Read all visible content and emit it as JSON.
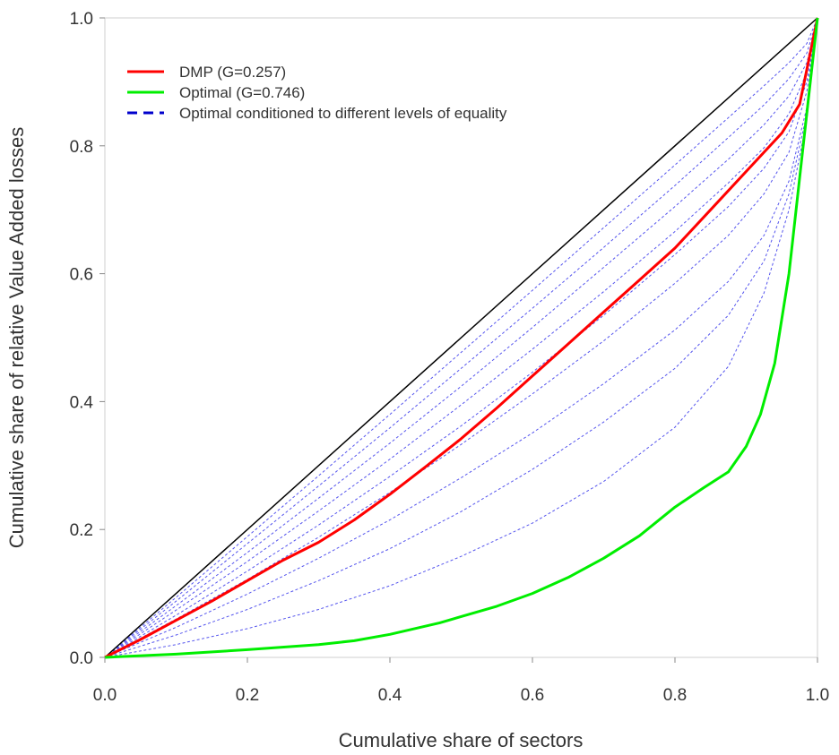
{
  "chart_data": {
    "type": "line",
    "title": "",
    "xlabel": "Cumulative share of sectors",
    "ylabel": "Cumulative share of relative Value Added losses",
    "xlim": [
      0,
      1
    ],
    "ylim": [
      0,
      1
    ],
    "x_ticks": [
      "0.0",
      "0.2",
      "0.4",
      "0.6",
      "0.8",
      "1.0"
    ],
    "y_ticks": [
      "0.0",
      "0.2",
      "0.4",
      "0.6",
      "0.8",
      "1.0"
    ],
    "grid": false,
    "legend_position": "top-left",
    "legend": [
      {
        "label": "DMP (G=0.257)",
        "color": "#ff0000",
        "style": "solid"
      },
      {
        "label": "Optimal (G=0.746)",
        "color": "#00ee00",
        "style": "solid"
      },
      {
        "label": "Optimal conditioned to different levels of equality",
        "color": "#0000cc",
        "style": "dashed"
      }
    ],
    "equality_line": {
      "color": "#000000",
      "x": [
        0,
        1
      ],
      "y": [
        0,
        1
      ]
    },
    "series": [
      {
        "label_ref": 0,
        "color": "#ff0000",
        "style": "solid",
        "x": [
          0,
          0.05,
          0.1,
          0.15,
          0.2,
          0.25,
          0.3,
          0.35,
          0.4,
          0.45,
          0.5,
          0.55,
          0.6,
          0.65,
          0.7,
          0.75,
          0.8,
          0.85,
          0.9,
          0.95,
          0.975,
          1.0
        ],
        "y": [
          0,
          0.028,
          0.058,
          0.088,
          0.12,
          0.152,
          0.18,
          0.215,
          0.255,
          0.298,
          0.342,
          0.39,
          0.44,
          0.49,
          0.54,
          0.59,
          0.64,
          0.7,
          0.76,
          0.82,
          0.865,
          1.0
        ]
      },
      {
        "label_ref": 1,
        "color": "#00ee00",
        "style": "solid",
        "x": [
          0,
          0.1,
          0.2,
          0.3,
          0.35,
          0.4,
          0.47,
          0.55,
          0.6,
          0.65,
          0.7,
          0.75,
          0.8,
          0.84,
          0.875,
          0.9,
          0.92,
          0.94,
          0.96,
          0.975,
          0.99,
          1.0
        ],
        "y": [
          0,
          0.005,
          0.012,
          0.02,
          0.026,
          0.036,
          0.054,
          0.08,
          0.1,
          0.125,
          0.155,
          0.19,
          0.235,
          0.265,
          0.29,
          0.33,
          0.38,
          0.46,
          0.6,
          0.75,
          0.9,
          1.0
        ]
      }
    ],
    "conditioned_curves": {
      "color": "#5555ee",
      "style": "dashed",
      "x": [
        0,
        0.1,
        0.2,
        0.3,
        0.4,
        0.5,
        0.6,
        0.7,
        0.8,
        0.875,
        0.925,
        0.96,
        0.985,
        1.0
      ],
      "curves": [
        [
          0,
          0.094,
          0.189,
          0.284,
          0.38,
          0.477,
          0.574,
          0.672,
          0.77,
          0.844,
          0.894,
          0.93,
          0.96,
          1.0
        ],
        [
          0,
          0.088,
          0.178,
          0.268,
          0.359,
          0.452,
          0.546,
          0.641,
          0.738,
          0.813,
          0.864,
          0.905,
          0.945,
          1.0
        ],
        [
          0,
          0.081,
          0.164,
          0.249,
          0.335,
          0.424,
          0.516,
          0.61,
          0.705,
          0.779,
          0.833,
          0.878,
          0.93,
          1.0
        ],
        [
          0,
          0.074,
          0.15,
          0.229,
          0.31,
          0.395,
          0.482,
          0.572,
          0.666,
          0.742,
          0.797,
          0.85,
          0.915,
          1.0
        ],
        [
          0,
          0.066,
          0.135,
          0.207,
          0.283,
          0.362,
          0.446,
          0.535,
          0.63,
          0.705,
          0.765,
          0.822,
          0.9,
          1.0
        ],
        [
          0,
          0.06,
          0.122,
          0.188,
          0.258,
          0.333,
          0.412,
          0.495,
          0.585,
          0.66,
          0.725,
          0.79,
          0.885,
          1.0
        ],
        [
          0,
          0.047,
          0.099,
          0.155,
          0.215,
          0.281,
          0.351,
          0.428,
          0.512,
          0.588,
          0.66,
          0.745,
          0.86,
          1.0
        ],
        [
          0,
          0.035,
          0.075,
          0.12,
          0.17,
          0.228,
          0.294,
          0.368,
          0.452,
          0.535,
          0.62,
          0.725,
          0.85,
          1.0
        ],
        [
          0,
          0.02,
          0.045,
          0.075,
          0.112,
          0.158,
          0.21,
          0.275,
          0.36,
          0.455,
          0.57,
          0.7,
          0.84,
          1.0
        ]
      ]
    }
  }
}
